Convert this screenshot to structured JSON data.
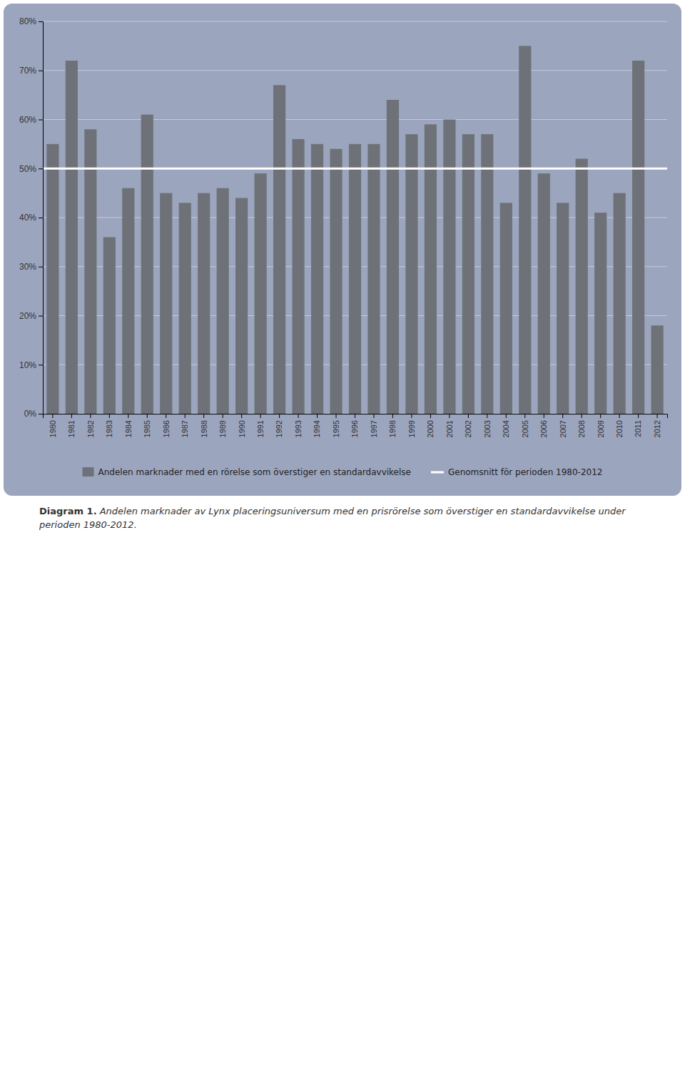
{
  "chart_data": {
    "type": "bar",
    "categories": [
      "1980",
      "1981",
      "1982",
      "1983",
      "1984",
      "1985",
      "1986",
      "1987",
      "1988",
      "1989",
      "1990",
      "1991",
      "1992",
      "1993",
      "1994",
      "1995",
      "1996",
      "1997",
      "1998",
      "1999",
      "2000",
      "2001",
      "2002",
      "2003",
      "2004",
      "2005",
      "2006",
      "2007",
      "2008",
      "2009",
      "2010",
      "2011",
      "2012"
    ],
    "series": [
      {
        "name": "Andelen marknader med en rörelse som överstiger en standardavvikelse",
        "color": "#6e7278",
        "values": [
          0.55,
          0.72,
          0.58,
          0.36,
          0.46,
          0.61,
          0.45,
          0.43,
          0.45,
          0.46,
          0.44,
          0.49,
          0.67,
          0.56,
          0.55,
          0.54,
          0.55,
          0.55,
          0.64,
          0.57,
          0.59,
          0.6,
          0.57,
          0.57,
          0.43,
          0.75,
          0.49,
          0.43,
          0.52,
          0.41,
          0.45,
          0.72,
          0.18
        ]
      }
    ],
    "average": {
      "name": "Genomsnitt för perioden 1980-2012",
      "value": 0.5,
      "color": "#ffffff"
    },
    "ylim": [
      0.0,
      0.8
    ],
    "yticks": [
      {
        "value": 0.0,
        "label": "0%"
      },
      {
        "value": 0.1,
        "label": "10%"
      },
      {
        "value": 0.2,
        "label": "20%"
      },
      {
        "value": 0.3,
        "label": "30%"
      },
      {
        "value": 0.4,
        "label": "40%"
      },
      {
        "value": 0.5,
        "label": "50%"
      },
      {
        "value": 0.6,
        "label": "60%"
      },
      {
        "value": 0.7,
        "label": "70%"
      },
      {
        "value": 0.8,
        "label": "80%"
      }
    ],
    "grid": true,
    "annotations": [
      "Diagram 1.",
      "Andelen marknader av Lynx placeringsuniversum med en prisrörelse som överstiger en standardavvikelse under perioden 1980-2012."
    ]
  }
}
